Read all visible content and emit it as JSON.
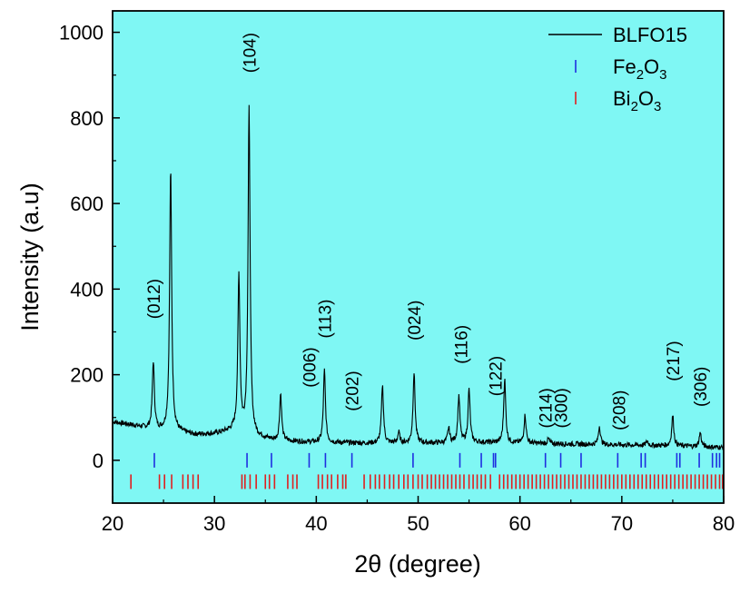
{
  "chart_data": {
    "type": "line",
    "xlabel": "2θ (degree)",
    "ylabel": "Intensity (a.u)",
    "xlim": [
      20,
      80
    ],
    "ylim": [
      -100,
      1050
    ],
    "x_ticks": [
      20,
      30,
      40,
      50,
      60,
      70,
      80
    ],
    "y_ticks": [
      0,
      200,
      400,
      600,
      800,
      1000
    ],
    "grid": false,
    "legend_position": "top-right",
    "background_color": "#7ff7f4",
    "legend": [
      {
        "label": "BLFO15",
        "marker": "line",
        "color": "#000000"
      },
      {
        "label": "Fe2O3",
        "marker": "tick",
        "color": "#1f2fe0"
      },
      {
        "label": "Bi2O3",
        "marker": "tick",
        "color": "#e01f1f"
      }
    ],
    "series": [
      {
        "name": "BLFO15",
        "color": "#000000",
        "baseline": [
          [
            20,
            90
          ],
          [
            22,
            82
          ],
          [
            24,
            72
          ],
          [
            26,
            68
          ],
          [
            28,
            60
          ],
          [
            30,
            62
          ],
          [
            32,
            70
          ],
          [
            34,
            55
          ],
          [
            36,
            46
          ],
          [
            40,
            42
          ],
          [
            45,
            40
          ],
          [
            50,
            40
          ],
          [
            55,
            42
          ],
          [
            60,
            40
          ],
          [
            65,
            38
          ],
          [
            70,
            36
          ],
          [
            75,
            34
          ],
          [
            80,
            30
          ]
        ],
        "peaks": [
          {
            "x": 24.0,
            "y": 230
          },
          {
            "x": 25.7,
            "y": 680
          },
          {
            "x": 32.4,
            "y": 430
          },
          {
            "x": 33.4,
            "y": 820
          },
          {
            "x": 36.5,
            "y": 155
          },
          {
            "x": 40.8,
            "y": 210
          },
          {
            "x": 46.5,
            "y": 175
          },
          {
            "x": 48.1,
            "y": 65
          },
          {
            "x": 49.6,
            "y": 205
          },
          {
            "x": 53.0,
            "y": 75
          },
          {
            "x": 54.0,
            "y": 150
          },
          {
            "x": 55.0,
            "y": 165
          },
          {
            "x": 58.5,
            "y": 190
          },
          {
            "x": 60.5,
            "y": 105
          },
          {
            "x": 62.8,
            "y": 50
          },
          {
            "x": 67.8,
            "y": 80
          },
          {
            "x": 72.5,
            "y": 45
          },
          {
            "x": 75.0,
            "y": 105
          },
          {
            "x": 77.7,
            "y": 65
          }
        ]
      }
    ],
    "reference_ticks": {
      "Fe2O3": {
        "color": "#1f2fe0",
        "y_center": 0,
        "positions": [
          24.1,
          33.2,
          35.6,
          39.3,
          40.9,
          43.5,
          49.5,
          54.1,
          56.2,
          57.4,
          57.6,
          62.5,
          64.0,
          66.0,
          69.6,
          71.9,
          72.3,
          75.4,
          75.7,
          77.6,
          78.9,
          79.3,
          79.6
        ]
      },
      "Bi2O3": {
        "color": "#e01f1f",
        "y_center": -50,
        "positions": [
          21.8,
          24.6,
          25.1,
          25.8,
          26.9,
          27.4,
          27.9,
          28.4,
          32.7,
          33.0,
          33.5,
          34.1,
          35.0,
          35.4,
          35.9,
          37.2,
          37.7,
          38.1,
          40.2,
          40.6,
          41.1,
          41.5,
          42.1,
          42.6,
          42.9,
          44.7,
          45.3,
          45.8,
          46.2,
          46.7,
          47.2,
          47.6,
          48.1,
          48.6,
          49.0,
          49.5,
          50.0,
          50.4,
          50.9,
          51.3,
          51.7,
          52.1,
          52.5,
          52.9,
          53.3,
          53.7,
          54.1,
          54.5,
          55.0,
          55.4,
          55.8,
          56.2,
          56.6,
          57.1,
          58.0,
          58.4,
          58.8,
          59.2,
          59.6,
          60.0,
          60.4,
          60.8,
          61.2,
          61.6,
          62.0,
          62.4,
          62.8,
          63.2,
          63.6,
          64.0,
          64.4,
          64.8,
          65.2,
          65.6,
          66.0,
          66.4,
          66.8,
          67.2,
          67.6,
          68.0,
          68.4,
          68.8,
          69.2,
          69.6,
          70.0,
          70.4,
          70.8,
          71.2,
          71.6,
          72.0,
          72.4,
          72.8,
          73.2,
          73.6,
          74.0,
          74.4,
          74.8,
          75.2,
          75.6,
          76.0,
          76.4,
          76.8,
          77.2,
          77.6,
          78.0,
          78.4,
          78.8,
          79.2,
          79.6,
          79.9
        ]
      }
    },
    "annotations": [
      {
        "text": "(012)",
        "x": 24.0,
        "y": 330
      },
      {
        "text": "(104)",
        "x": 33.4,
        "y": 905
      },
      {
        "text": "(006)",
        "x": 39.3,
        "y": 170
      },
      {
        "text": "(113)",
        "x": 40.8,
        "y": 285
      },
      {
        "text": "(202)",
        "x": 43.5,
        "y": 115
      },
      {
        "text": "(024)",
        "x": 49.6,
        "y": 280
      },
      {
        "text": "(116)",
        "x": 54.2,
        "y": 225
      },
      {
        "text": "(122)",
        "x": 57.6,
        "y": 150
      },
      {
        "text": "(214)",
        "x": 62.5,
        "y": 75
      },
      {
        "text": "(300)",
        "x": 64.0,
        "y": 75
      },
      {
        "text": "(208)",
        "x": 69.7,
        "y": 70
      },
      {
        "text": "(217)",
        "x": 75.0,
        "y": 185
      },
      {
        "text": "(306)",
        "x": 77.7,
        "y": 125
      }
    ]
  }
}
